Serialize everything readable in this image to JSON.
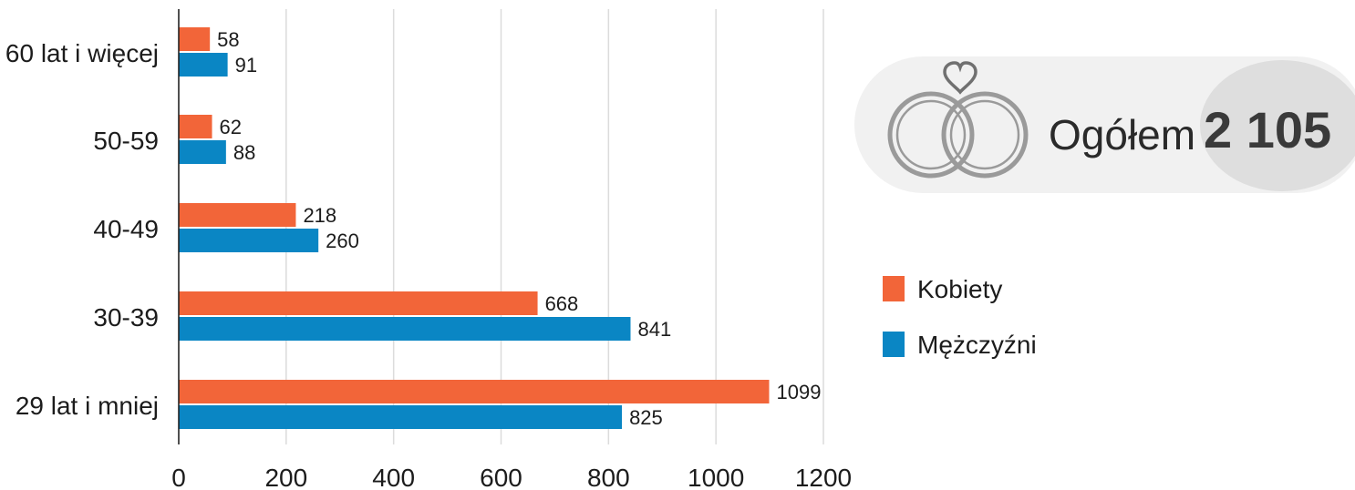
{
  "chart_data": {
    "type": "bar",
    "orientation": "horizontal",
    "categories": [
      "60 lat i więcej",
      "50-59",
      "40-49",
      "30-39",
      "29 lat i mniej"
    ],
    "series": [
      {
        "name": "Kobiety",
        "color": "#f26539",
        "values": [
          58,
          62,
          218,
          668,
          1099
        ]
      },
      {
        "name": "Mężczyźni",
        "color": "#0a86c4",
        "values": [
          91,
          88,
          260,
          841,
          825
        ]
      }
    ],
    "xlim": [
      0,
      1200
    ],
    "xticks": [
      "0",
      "200",
      "400",
      "600",
      "800",
      "1000",
      "1200"
    ],
    "grid": true,
    "legend_position": "right"
  },
  "legend": {
    "items": [
      {
        "label": "Kobiety",
        "color": "#f26539"
      },
      {
        "label": "Mężczyźni",
        "color": "#0a86c4"
      }
    ]
  },
  "total": {
    "label": "Ogółem",
    "value": "2 105",
    "icon": "wedding-rings-icon"
  },
  "colors": {
    "grid": "#dcdcdc",
    "axis": "#1c1c1c",
    "total_pill": "#f1f1f1",
    "total_circle": "#dedede",
    "icon": "#9a9a9a",
    "heart": "#707070"
  }
}
